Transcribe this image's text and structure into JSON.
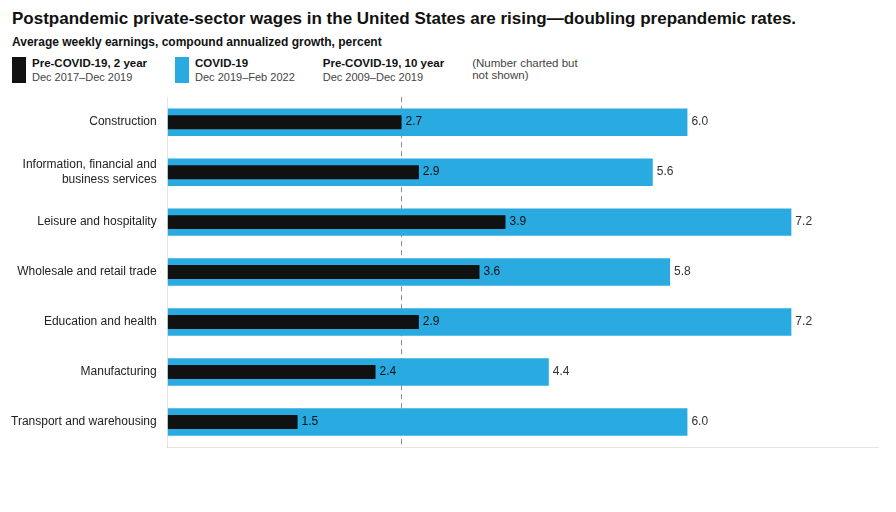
{
  "chart_data": {
    "type": "bar",
    "orientation": "horizontal",
    "title": "Postpandemic private-sector wages in the United States are rising—doubling prepandemic rates.",
    "subtitle": "Average weekly earnings, compound annualized growth, percent",
    "categories": [
      "Construction",
      "Information, financial and\nbusiness services",
      "Leisure and hospitality",
      "Wholesale and retail trade",
      "Education and health",
      "Manufacturing",
      "Transport and warehousing"
    ],
    "series": [
      {
        "name": "Pre-COVID-19, 2 year",
        "color": "#111111",
        "values": [
          2.7,
          2.9,
          3.9,
          3.6,
          2.9,
          2.4,
          1.5
        ]
      },
      {
        "name": "COVID-19",
        "color": "#29ABE2",
        "values": [
          6.0,
          5.6,
          7.2,
          5.8,
          7.2,
          4.4,
          6.0
        ],
        "value_labels": [
          "6.0",
          "5.6",
          "7.2",
          "5.8",
          "7.2",
          "4.4",
          "6.0"
        ]
      }
    ],
    "annotations": [
      "Dec 2017–Dec 2019",
      "Dec 2019–Feb 2022",
      "Pre-COVID-19, 10 year",
      "Dec 2009–Dec 2019",
      "(Number charted but not shown)"
    ],
    "reference_lines": [
      {
        "x": 2.7,
        "line_style": "dashed"
      }
    ],
    "xlim": [
      0,
      8.2
    ],
    "legend": "top left",
    "data_labels": true,
    "tick_labels": "y",
    "grid": false
  }
}
